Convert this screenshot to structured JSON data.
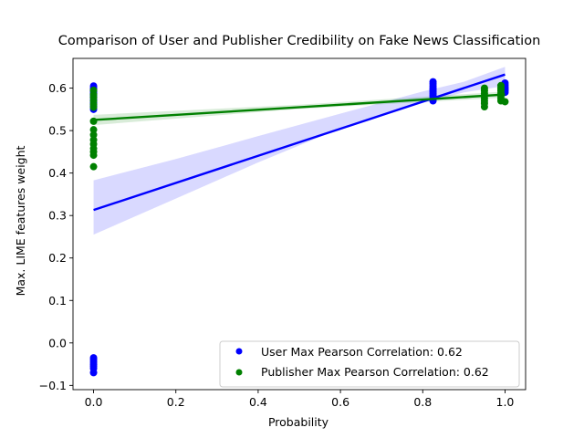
{
  "chart_data": {
    "type": "scatter",
    "title": "Comparison of User and Publisher Credibility on Fake News Classification",
    "xlabel": "Probability",
    "ylabel": "Max. LIME features weight",
    "xlim": [
      -0.05,
      1.05
    ],
    "ylim": [
      -0.11,
      0.67
    ],
    "xticks": [
      "0.0",
      "0.2",
      "0.4",
      "0.6",
      "0.8",
      "1.0"
    ],
    "yticks": [
      "−0.1",
      "0.0",
      "0.1",
      "0.2",
      "0.3",
      "0.4",
      "0.5",
      "0.6"
    ],
    "grid": false,
    "legend": {
      "position": "lower-right",
      "entries": [
        "User Max Pearson Correlation: 0.62",
        "Publisher Max Pearson Correlation: 0.62"
      ]
    },
    "series": [
      {
        "name": "User Max Pearson Correlation: 0.62",
        "color": "#0000ff",
        "points": [
          [
            0.0,
            0.605
          ],
          [
            0.0,
            0.6
          ],
          [
            0.0,
            0.596
          ],
          [
            0.0,
            0.592
          ],
          [
            0.0,
            0.588
          ],
          [
            0.0,
            0.583
          ],
          [
            0.0,
            0.578
          ],
          [
            0.0,
            0.572
          ],
          [
            0.0,
            0.565
          ],
          [
            0.0,
            0.558
          ],
          [
            0.0,
            0.55
          ],
          [
            0.0,
            -0.035
          ],
          [
            0.0,
            -0.04
          ],
          [
            0.0,
            -0.045
          ],
          [
            0.0,
            -0.05
          ],
          [
            0.0,
            -0.055
          ],
          [
            0.0,
            -0.06
          ],
          [
            0.0,
            -0.07
          ],
          [
            0.825,
            0.615
          ],
          [
            0.825,
            0.61
          ],
          [
            0.825,
            0.605
          ],
          [
            0.825,
            0.6
          ],
          [
            0.825,
            0.596
          ],
          [
            0.825,
            0.592
          ],
          [
            0.825,
            0.588
          ],
          [
            0.825,
            0.584
          ],
          [
            0.825,
            0.58
          ],
          [
            0.825,
            0.575
          ],
          [
            0.825,
            0.57
          ],
          [
            1.0,
            0.612
          ],
          [
            1.0,
            0.607
          ],
          [
            1.0,
            0.603
          ],
          [
            1.0,
            0.6
          ],
          [
            1.0,
            0.597
          ],
          [
            1.0,
            0.594
          ],
          [
            1.0,
            0.59
          ]
        ],
        "fit": {
          "x": [
            0.0,
            1.0
          ],
          "y": [
            0.313,
            0.632
          ]
        },
        "ci": {
          "x": [
            0.0,
            0.2,
            0.4,
            0.6,
            0.8,
            0.9,
            1.0
          ],
          "lower": [
            0.255,
            0.34,
            0.425,
            0.505,
            0.565,
            0.59,
            0.605
          ],
          "upper": [
            0.383,
            0.433,
            0.487,
            0.54,
            0.592,
            0.615,
            0.65
          ]
        }
      },
      {
        "name": "Publisher Max Pearson Correlation: 0.62",
        "color": "#008000",
        "points": [
          [
            0.0,
            0.595
          ],
          [
            0.0,
            0.585
          ],
          [
            0.0,
            0.578
          ],
          [
            0.0,
            0.57
          ],
          [
            0.0,
            0.562
          ],
          [
            0.0,
            0.555
          ],
          [
            0.0,
            0.522
          ],
          [
            0.0,
            0.502
          ],
          [
            0.0,
            0.49
          ],
          [
            0.0,
            0.478
          ],
          [
            0.0,
            0.468
          ],
          [
            0.0,
            0.458
          ],
          [
            0.0,
            0.45
          ],
          [
            0.0,
            0.442
          ],
          [
            0.0,
            0.415
          ],
          [
            0.95,
            0.6
          ],
          [
            0.95,
            0.594
          ],
          [
            0.95,
            0.588
          ],
          [
            0.95,
            0.582
          ],
          [
            0.95,
            0.576
          ],
          [
            0.95,
            0.57
          ],
          [
            0.95,
            0.564
          ],
          [
            0.95,
            0.556
          ],
          [
            0.99,
            0.606
          ],
          [
            0.99,
            0.6
          ],
          [
            0.99,
            0.594
          ],
          [
            0.99,
            0.588
          ],
          [
            0.99,
            0.582
          ],
          [
            0.99,
            0.576
          ],
          [
            0.99,
            0.57
          ],
          [
            1.0,
            0.568
          ]
        ],
        "fit": {
          "x": [
            0.0,
            1.0
          ],
          "y": [
            0.525,
            0.585
          ]
        },
        "ci": {
          "x": [
            0.0,
            0.5,
            1.0
          ],
          "lower": [
            0.513,
            0.551,
            0.578
          ],
          "upper": [
            0.537,
            0.561,
            0.592
          ]
        }
      }
    ]
  }
}
